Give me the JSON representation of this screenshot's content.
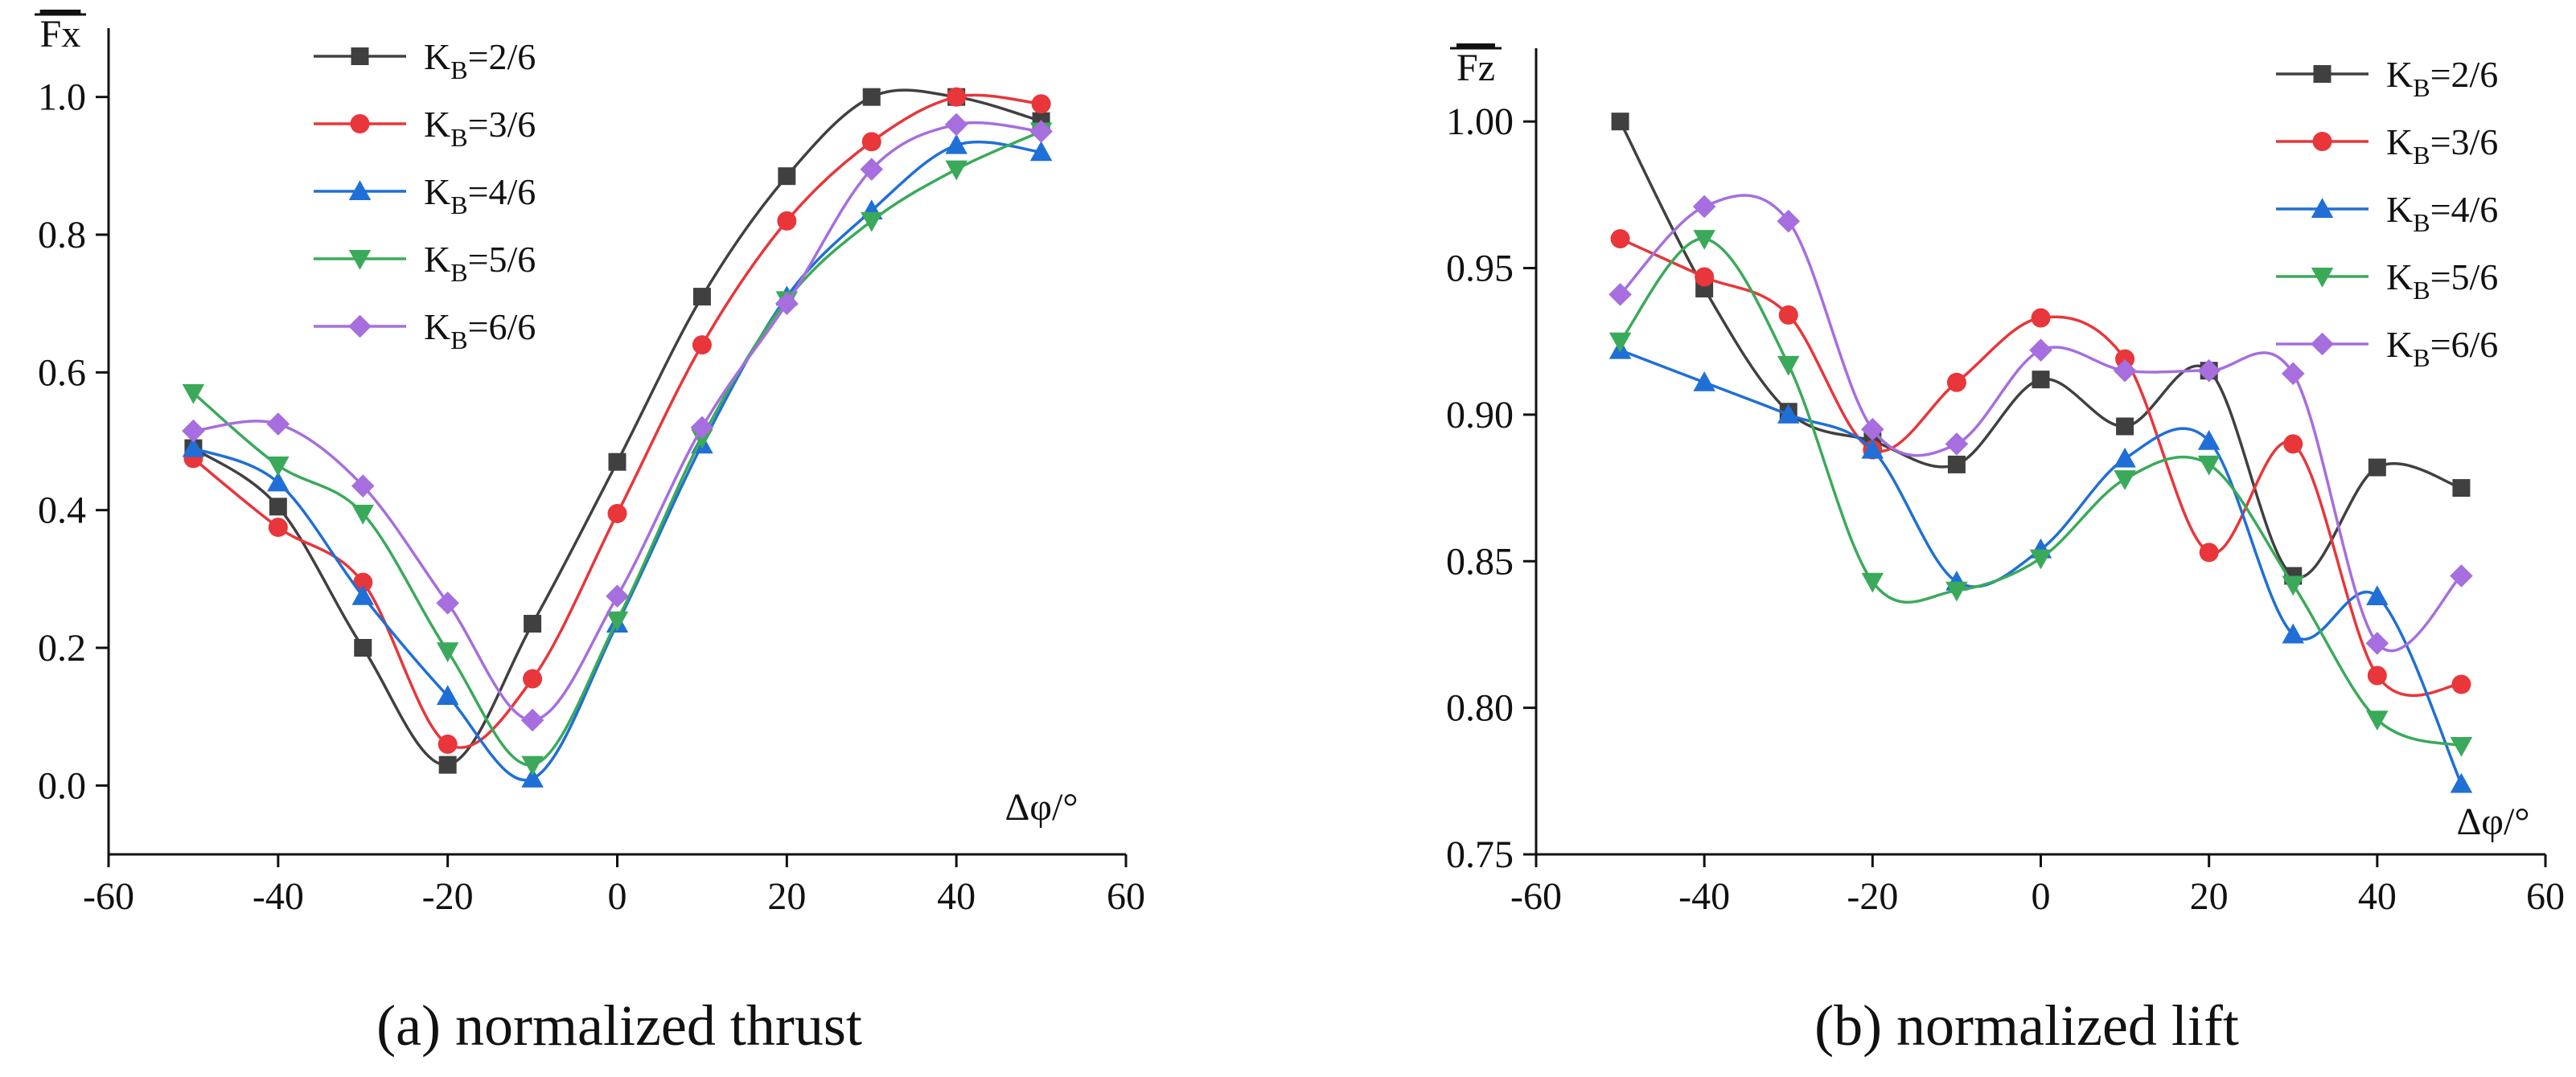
{
  "chart_data": [
    {
      "type": "line",
      "id": "a",
      "caption": "(a) normalized thrust",
      "ylabel": "Fx",
      "xlabel": "Δφ/°",
      "x": [
        -50,
        -40,
        -30,
        -20,
        -10,
        0,
        10,
        20,
        30,
        40,
        50
      ],
      "xlim": [
        -60,
        60
      ],
      "ylim": [
        -0.1,
        1.1
      ],
      "xticks": [
        "-60",
        "-40",
        "-20",
        "0",
        "20",
        "40",
        "60"
      ],
      "yticks": [
        "0.0",
        "0.2",
        "0.4",
        "0.6",
        "0.8",
        "1.0"
      ],
      "legend_position": "top-left",
      "series": [
        {
          "name": "K",
          "sub": "B",
          "suffix": "=2/6",
          "color": "#404040",
          "marker": "square",
          "values": [
            0.49,
            0.405,
            0.2,
            0.03,
            0.235,
            0.47,
            0.71,
            0.885,
            1.0,
            1.0,
            0.965
          ]
        },
        {
          "name": "K",
          "sub": "B",
          "suffix": "=3/6",
          "color": "#e8363a",
          "marker": "circle",
          "values": [
            0.475,
            0.375,
            0.295,
            0.06,
            0.155,
            0.395,
            0.64,
            0.82,
            0.935,
            1.0,
            0.99
          ]
        },
        {
          "name": "K",
          "sub": "B",
          "suffix": "=4/6",
          "color": "#1f6fd6",
          "marker": "triangle-up",
          "values": [
            0.49,
            0.44,
            0.275,
            0.13,
            0.01,
            0.235,
            0.495,
            0.71,
            0.835,
            0.93,
            0.92
          ]
        },
        {
          "name": "K",
          "sub": "B",
          "suffix": "=5/6",
          "color": "#3aaa5a",
          "marker": "triangle-down",
          "values": [
            0.57,
            0.465,
            0.395,
            0.195,
            0.03,
            0.24,
            0.505,
            0.705,
            0.82,
            0.895,
            0.95
          ]
        },
        {
          "name": "K",
          "sub": "B",
          "suffix": "=6/6",
          "color": "#a66ede",
          "marker": "diamond",
          "values": [
            0.515,
            0.525,
            0.435,
            0.265,
            0.095,
            0.275,
            0.52,
            0.7,
            0.895,
            0.96,
            0.95
          ]
        }
      ]
    },
    {
      "type": "line",
      "id": "b",
      "caption": "(b) normalized lift",
      "ylabel": "Fz",
      "xlabel": "Δφ/°",
      "x": [
        -50,
        -40,
        -30,
        -20,
        -10,
        0,
        10,
        20,
        30,
        40,
        50
      ],
      "xlim": [
        -60,
        60
      ],
      "ylim": [
        0.75,
        1.025
      ],
      "xticks": [
        "-60",
        "-40",
        "-20",
        "0",
        "20",
        "40",
        "60"
      ],
      "yticks": [
        "0.75",
        "0.80",
        "0.85",
        "0.90",
        "0.95",
        "1.00"
      ],
      "legend_position": "top-right",
      "series": [
        {
          "name": "K",
          "sub": "B",
          "suffix": "=2/6",
          "color": "#404040",
          "marker": "square",
          "values": [
            1.0,
            0.943,
            0.901,
            0.891,
            0.883,
            0.912,
            0.896,
            0.915,
            0.845,
            0.882,
            0.875
          ]
        },
        {
          "name": "K",
          "sub": "B",
          "suffix": "=3/6",
          "color": "#e8363a",
          "marker": "circle",
          "values": [
            0.96,
            0.947,
            0.934,
            0.888,
            0.911,
            0.933,
            0.919,
            0.853,
            0.89,
            0.811,
            0.808
          ]
        },
        {
          "name": "K",
          "sub": "B",
          "suffix": "=4/6",
          "color": "#1f6fd6",
          "marker": "triangle-up",
          "values": [
            0.922,
            0.911,
            0.9,
            0.888,
            0.843,
            0.854,
            0.885,
            0.891,
            0.825,
            0.838,
            0.774
          ]
        },
        {
          "name": "K",
          "sub": "B",
          "suffix": "=5/6",
          "color": "#3aaa5a",
          "marker": "triangle-down",
          "values": [
            0.925,
            0.96,
            0.917,
            0.843,
            0.84,
            0.851,
            0.878,
            0.883,
            0.842,
            0.796,
            0.787
          ]
        },
        {
          "name": "K",
          "sub": "B",
          "suffix": "=6/6",
          "color": "#a66ede",
          "marker": "diamond",
          "values": [
            0.941,
            0.971,
            0.966,
            0.895,
            0.89,
            0.922,
            0.915,
            0.915,
            0.914,
            0.822,
            0.845
          ]
        }
      ]
    }
  ]
}
